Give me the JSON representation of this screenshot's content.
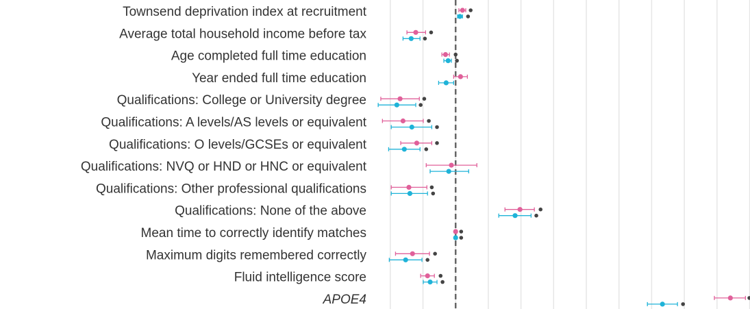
{
  "chart_data": {
    "type": "forest",
    "categories": [
      "Townsend deprivation index at recruitment",
      "Average total household income before tax",
      "Age completed full time education",
      "Year ended full time education",
      "Qualifications: College or University degree",
      "Qualifications: A levels/AS levels or equivalent",
      "Qualifications: O levels/GCSEs or equivalent",
      "Qualifications: NVQ or HND or HNC or equivalent",
      "Qualifications: Other professional qualifications",
      "Qualifications: None of the above",
      "Mean time to correctly identify matches",
      "Maximum digits remembered correctly",
      "Fluid intelligence score",
      "APOE4"
    ],
    "series": [
      {
        "color": "#e0609a",
        "values": [
          0.21,
          -1.22,
          -0.31,
          0.15,
          -1.7,
          -1.61,
          -1.19,
          -0.13,
          -1.43,
          1.97,
          0.0,
          -1.32,
          -0.86,
          8.41
        ],
        "lower": [
          0.1,
          -1.49,
          -0.42,
          -0.06,
          -2.29,
          -2.24,
          -1.68,
          -0.9,
          -1.97,
          1.51,
          -0.04,
          -1.84,
          -1.07,
          7.92
        ],
        "upper": [
          0.31,
          -0.92,
          -0.19,
          0.36,
          -1.11,
          -0.99,
          -0.73,
          0.65,
          -0.88,
          2.41,
          0.04,
          -0.8,
          -0.65,
          8.87
        ]
      },
      {
        "color": "#1fb3d8",
        "values": [
          0.13,
          -1.36,
          -0.23,
          -0.29,
          -1.8,
          -1.34,
          -1.57,
          -0.21,
          -1.4,
          1.82,
          0.0,
          -1.53,
          -0.78,
          6.33
        ],
        "lower": [
          0.06,
          -1.61,
          -0.36,
          -0.52,
          -2.37,
          -1.97,
          -2.05,
          -0.78,
          -1.97,
          1.32,
          -0.04,
          -2.03,
          -0.99,
          5.87
        ],
        "upper": [
          0.21,
          -1.09,
          -0.13,
          -0.06,
          -1.22,
          -0.73,
          -1.09,
          0.4,
          -0.86,
          2.31,
          0.04,
          -1.03,
          -0.57,
          6.79
        ]
      },
      {
        "color": "#444444",
        "row": 0,
        "values": [
          0.46,
          -0.75,
          0.0,
          null,
          -0.96,
          -0.82,
          -0.57,
          null,
          -0.73,
          2.6,
          0.17,
          -0.63,
          -0.46,
          8.99
        ]
      },
      {
        "color": "#444444",
        "row": 1,
        "values": [
          0.38,
          -0.94,
          0.04,
          null,
          -1.07,
          -0.57,
          -0.9,
          null,
          -0.69,
          2.47,
          0.17,
          -0.86,
          -0.4,
          6.96
        ]
      }
    ],
    "xlim": [
      -2.52,
      9.01
    ],
    "xticks": [
      -2,
      -1,
      0,
      1,
      2,
      3,
      4,
      5,
      6,
      7,
      8,
      9
    ],
    "reference_line": 0,
    "grid": true
  }
}
